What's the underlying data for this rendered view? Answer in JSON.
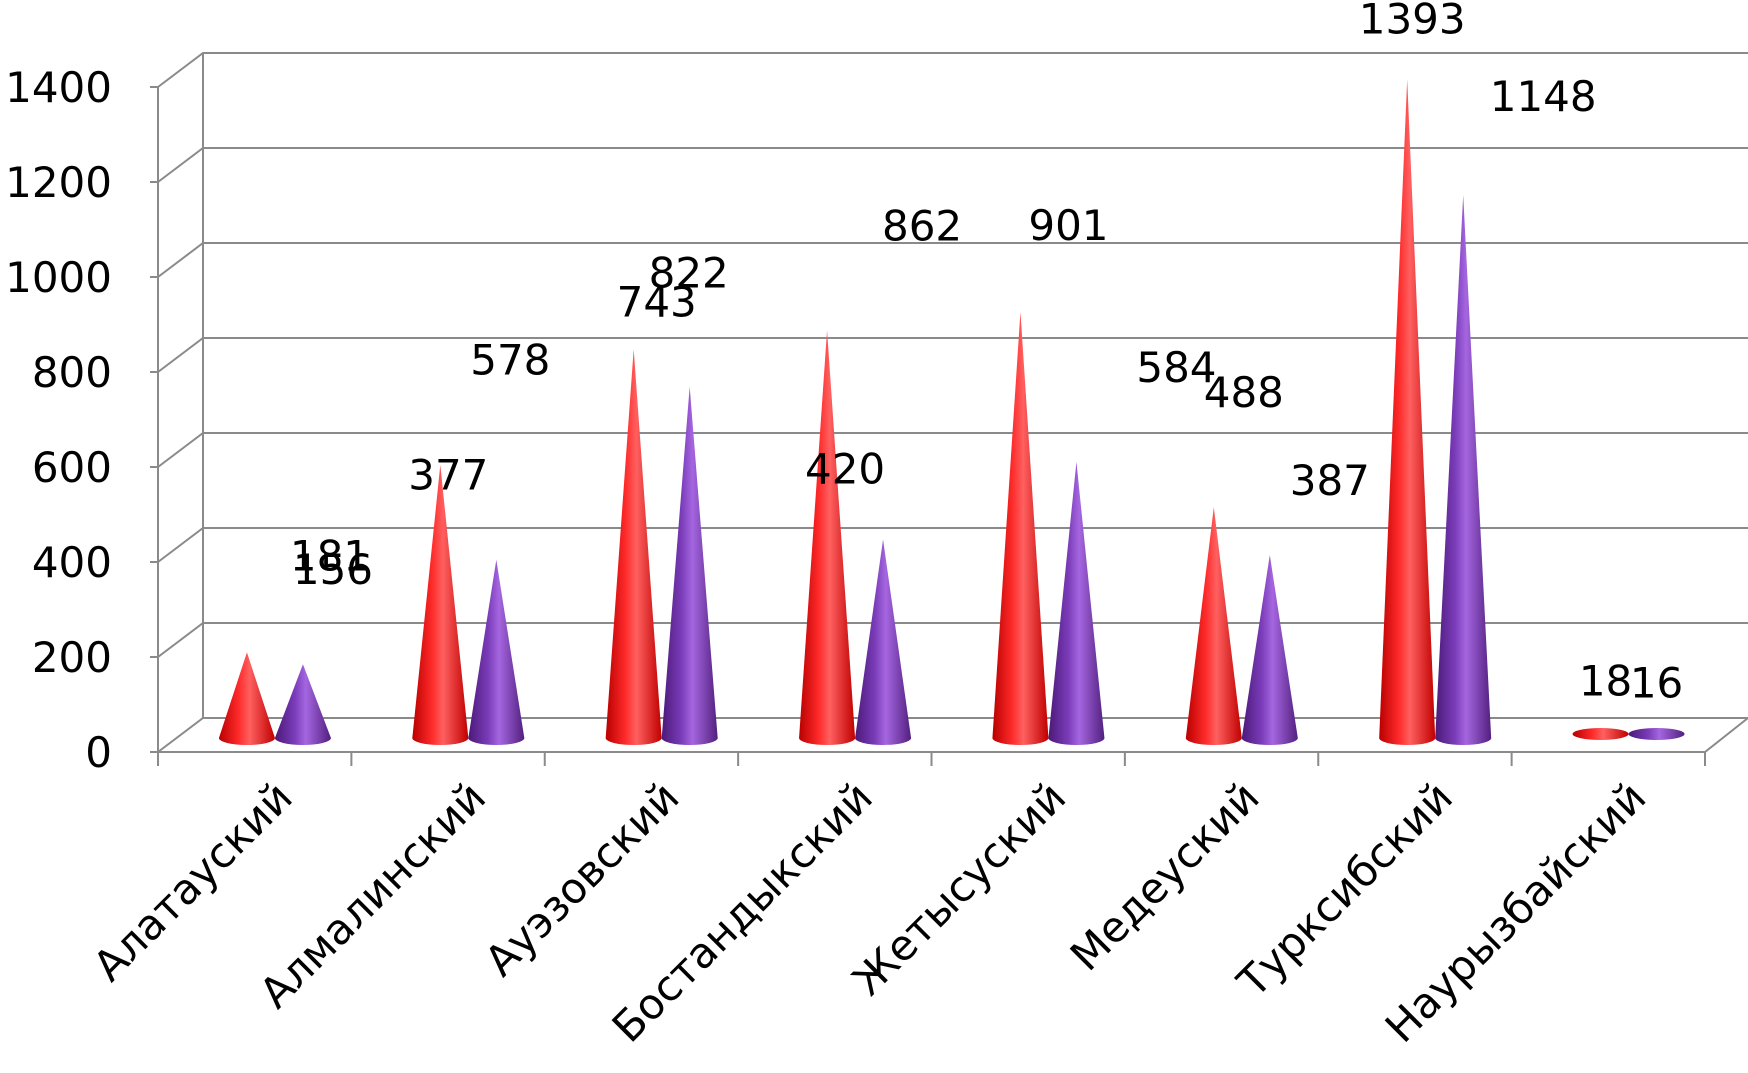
{
  "chart_data": {
    "type": "bar",
    "style": "3d-cone",
    "title": "",
    "xlabel": "",
    "ylabel": "",
    "ylim": [
      0,
      1400
    ],
    "ytick_step": 200,
    "yticks": [
      "0",
      "200",
      "400",
      "600",
      "800",
      "1000",
      "1200",
      "1400"
    ],
    "grid": true,
    "legend": "none",
    "categories": [
      "Алатауский",
      "Алмалинский",
      "Ауэзовский",
      "Бостандыкский",
      "Жетысуский",
      "Медеуский",
      "Турксибский",
      "Наурызбайский"
    ],
    "series": [
      {
        "values": [
          181,
          578,
          822,
          862,
          901,
          488,
          1393,
          18
        ],
        "color": "#ff0000"
      },
      {
        "values": [
          156,
          377,
          743,
          420,
          584,
          387,
          1148,
          16
        ],
        "color": "#7030a0"
      }
    ]
  }
}
